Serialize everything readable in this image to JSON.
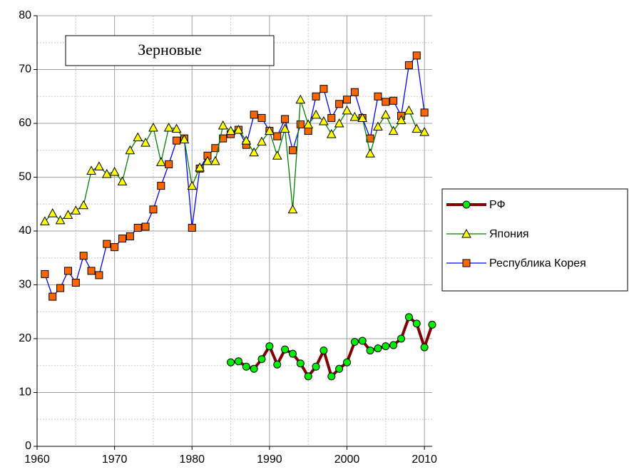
{
  "chart_data": {
    "type": "line",
    "title": "Зерновые",
    "x": [
      1961,
      1962,
      1963,
      1964,
      1965,
      1966,
      1967,
      1968,
      1969,
      1970,
      1971,
      1972,
      1973,
      1974,
      1975,
      1976,
      1977,
      1978,
      1979,
      1980,
      1981,
      1982,
      1983,
      1984,
      1985,
      1986,
      1987,
      1988,
      1989,
      1990,
      1991,
      1992,
      1993,
      1994,
      1995,
      1996,
      1997,
      1998,
      1999,
      2000,
      2001,
      2002,
      2003,
      2004,
      2005,
      2006,
      2007,
      2008,
      2009,
      2010,
      2011
    ],
    "series": [
      {
        "name": "РФ",
        "color": "#800000",
        "marker_color": "#00ee00",
        "marker": "circle",
        "values": [
          null,
          null,
          null,
          null,
          null,
          null,
          null,
          null,
          null,
          null,
          null,
          null,
          null,
          null,
          null,
          null,
          null,
          null,
          null,
          null,
          null,
          null,
          null,
          null,
          15.6,
          15.8,
          14.8,
          14.4,
          16.2,
          18.6,
          15.2,
          18.0,
          17.2,
          15.4,
          13.0,
          14.8,
          17.8,
          13.0,
          14.4,
          15.6,
          19.4,
          19.6,
          17.8,
          18.2,
          18.6,
          18.8,
          20.0,
          24.0,
          22.8,
          18.4,
          22.6
        ]
      },
      {
        "name": "Япония",
        "color": "#008000",
        "marker_color": "#ffff00",
        "marker": "triangle",
        "values": [
          41.8,
          43.3,
          42.0,
          43.0,
          43.8,
          44.8,
          51.2,
          52.0,
          50.6,
          51.0,
          49.2,
          55.0,
          57.4,
          56.4,
          59.2,
          52.8,
          59.2,
          59.0,
          57.0,
          48.4,
          51.8,
          53.0,
          53.0,
          59.6,
          58.6,
          58.8,
          56.8,
          54.6,
          56.6,
          58.6,
          54.0,
          59.0,
          44.0,
          64.4,
          59.8,
          61.6,
          60.4,
          58.0,
          60.0,
          62.4,
          61.2,
          61.0,
          54.4,
          59.4,
          61.6,
          58.6,
          60.6,
          62.4,
          59.0,
          58.4,
          null
        ]
      },
      {
        "name": "Республика Корея",
        "color": "#0000ff",
        "marker_color": "#ff6600",
        "marker": "square",
        "values": [
          32.0,
          27.8,
          29.4,
          32.6,
          30.4,
          35.4,
          32.6,
          31.8,
          37.6,
          37.0,
          38.6,
          39.0,
          40.6,
          40.8,
          44.0,
          48.4,
          52.4,
          56.8,
          57.2,
          40.6,
          51.6,
          54.0,
          55.4,
          57.2,
          58.0,
          58.8,
          56.0,
          61.6,
          61.0,
          58.6,
          57.6,
          60.8,
          55.0,
          59.8,
          58.6,
          65.0,
          66.4,
          61.0,
          63.6,
          64.4,
          65.8,
          61.0,
          57.2,
          65.0,
          64.0,
          64.2,
          61.4,
          70.8,
          72.6,
          62.0,
          null
        ]
      }
    ],
    "xlim": [
      1960,
      2011
    ],
    "xticks": [
      1960,
      1970,
      1980,
      1990,
      2000,
      2010
    ],
    "xminor": [
      1965,
      1975,
      1985,
      1995,
      2005
    ],
    "ylim": [
      0,
      80
    ],
    "yticks": [
      0,
      10,
      20,
      30,
      40,
      50,
      60,
      70,
      80
    ],
    "yminor": [
      5,
      15,
      25,
      35,
      45,
      55,
      65,
      75
    ],
    "grid": true,
    "legend": "right"
  }
}
